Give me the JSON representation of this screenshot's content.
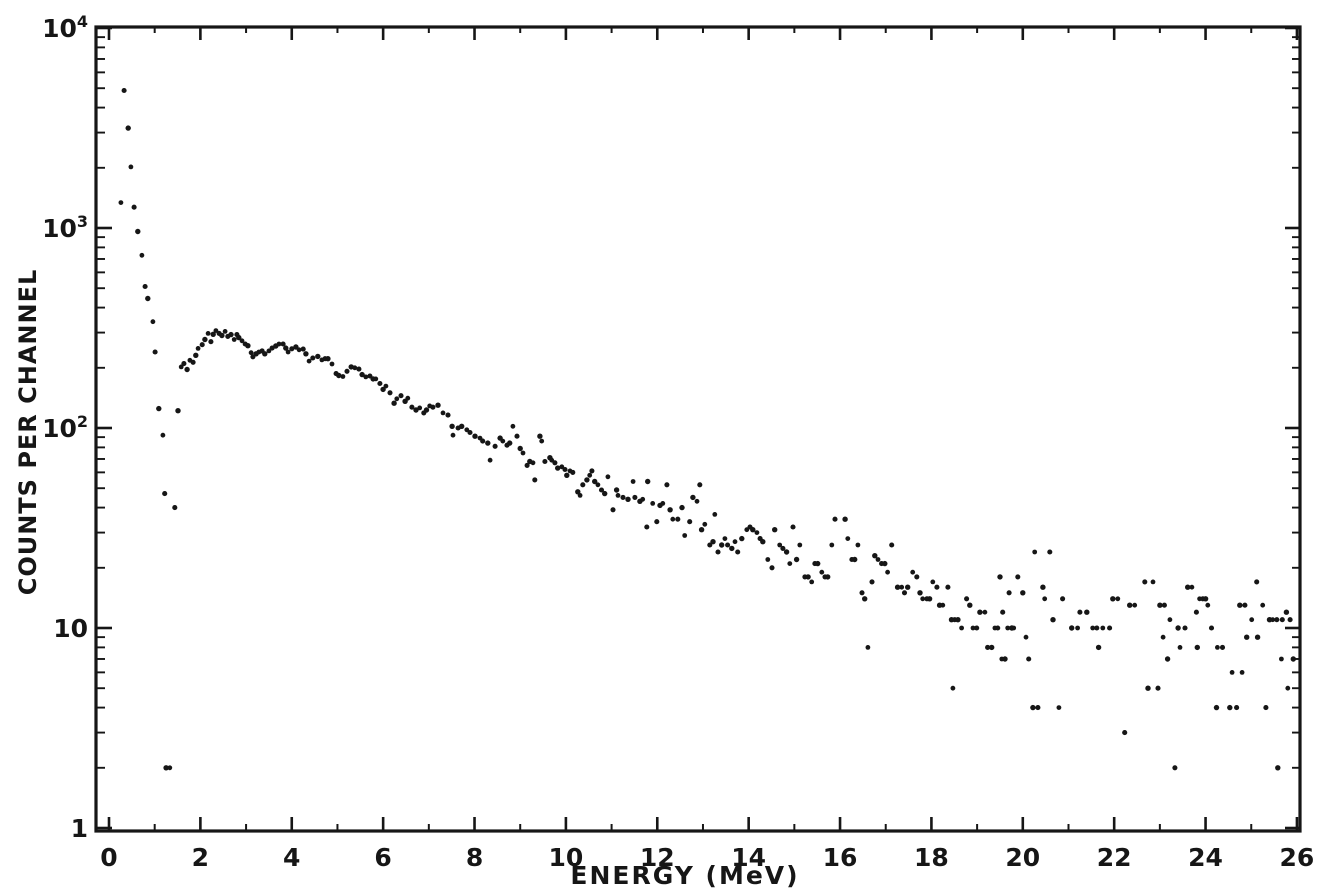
{
  "style": {
    "ink": "#161616",
    "paper": "#ffffff"
  },
  "chart_data": {
    "type": "scatter",
    "title": "",
    "xlabel": "ENERGY (MeV)",
    "ylabel": "COUNTS PER CHANNEL",
    "legend": "none",
    "grid": "off",
    "marker": "filled-dot",
    "x_axis": {
      "min": 0,
      "max": 26,
      "scale": "linear",
      "major_tick_step": 2,
      "minor_tick_step": 1,
      "tick_values": [
        0,
        2,
        4,
        6,
        8,
        10,
        12,
        14,
        16,
        18,
        20,
        22,
        24,
        26
      ],
      "tick_labels": [
        "0",
        "2",
        "4",
        "6",
        "8",
        "10",
        "12",
        "14",
        "16",
        "18",
        "20",
        "22",
        "24",
        "26"
      ]
    },
    "y_axis": {
      "min": 1,
      "max": 10000,
      "scale": "log",
      "tick_values": [
        1,
        10,
        100,
        1000,
        10000
      ],
      "tick_labels": [
        "1",
        "10",
        "10^2",
        "10^3",
        "10^4"
      ]
    },
    "points": [
      [
        0.26,
        1340
      ],
      [
        0.33,
        4870
      ],
      [
        0.42,
        3160
      ],
      [
        0.48,
        2020
      ],
      [
        0.55,
        1270
      ],
      [
        0.63,
        960
      ],
      [
        0.72,
        730
      ],
      [
        0.79,
        510
      ],
      [
        0.85,
        444
      ],
      [
        0.96,
        340
      ],
      [
        1.01,
        240
      ],
      [
        1.09,
        125
      ],
      [
        1.18,
        92
      ],
      [
        1.22,
        47
      ],
      [
        1.25,
        2
      ],
      [
        1.33,
        2
      ],
      [
        1.44,
        40
      ],
      [
        1.51,
        122
      ],
      [
        1.58,
        202
      ],
      [
        1.64,
        210
      ],
      [
        1.71,
        196
      ],
      [
        1.77,
        218
      ],
      [
        1.84,
        213
      ],
      [
        1.9,
        231
      ],
      [
        1.95,
        250
      ],
      [
        2.04,
        261
      ],
      [
        2.1,
        277
      ],
      [
        2.17,
        297
      ],
      [
        2.23,
        270
      ],
      [
        2.28,
        294
      ],
      [
        2.34,
        307
      ],
      [
        2.41,
        297
      ],
      [
        2.47,
        290
      ],
      [
        2.54,
        304
      ],
      [
        2.6,
        287
      ],
      [
        2.67,
        293
      ],
      [
        2.74,
        277
      ],
      [
        2.8,
        293
      ],
      [
        2.84,
        283
      ],
      [
        2.91,
        273
      ],
      [
        2.98,
        263
      ],
      [
        3.04,
        258
      ],
      [
        3.11,
        238
      ],
      [
        3.15,
        227
      ],
      [
        3.22,
        235
      ],
      [
        3.28,
        240
      ],
      [
        3.35,
        243
      ],
      [
        3.41,
        235
      ],
      [
        3.5,
        243
      ],
      [
        3.57,
        251
      ],
      [
        3.65,
        257
      ],
      [
        3.72,
        263
      ],
      [
        3.81,
        263
      ],
      [
        3.87,
        251
      ],
      [
        3.92,
        240
      ],
      [
        4.0,
        249
      ],
      [
        4.09,
        254
      ],
      [
        4.16,
        246
      ],
      [
        4.25,
        248
      ],
      [
        4.31,
        235
      ],
      [
        4.38,
        216
      ],
      [
        4.46,
        224
      ],
      [
        4.57,
        228
      ],
      [
        4.66,
        219
      ],
      [
        4.73,
        222
      ],
      [
        4.79,
        222
      ],
      [
        4.88,
        209
      ],
      [
        4.97,
        187
      ],
      [
        5.03,
        183
      ],
      [
        5.12,
        181
      ],
      [
        5.21,
        192
      ],
      [
        5.3,
        202
      ],
      [
        5.38,
        200
      ],
      [
        5.47,
        197
      ],
      [
        5.54,
        185
      ],
      [
        5.62,
        180
      ],
      [
        5.71,
        182
      ],
      [
        5.78,
        176
      ],
      [
        5.84,
        176
      ],
      [
        5.93,
        167
      ],
      [
        6.0,
        156
      ],
      [
        6.06,
        162
      ],
      [
        6.15,
        150
      ],
      [
        6.24,
        133
      ],
      [
        6.3,
        140
      ],
      [
        6.39,
        145
      ],
      [
        6.48,
        136
      ],
      [
        6.54,
        141
      ],
      [
        6.63,
        127
      ],
      [
        6.72,
        123
      ],
      [
        6.8,
        126
      ],
      [
        6.89,
        119
      ],
      [
        6.95,
        123
      ],
      [
        7.02,
        129
      ],
      [
        7.09,
        127
      ],
      [
        7.2,
        130
      ],
      [
        7.31,
        119
      ],
      [
        7.42,
        116
      ],
      [
        7.51,
        102
      ],
      [
        7.53,
        92
      ],
      [
        7.64,
        100
      ],
      [
        7.72,
        102
      ],
      [
        7.83,
        98
      ],
      [
        7.9,
        95
      ],
      [
        8.01,
        91
      ],
      [
        8.12,
        89
      ],
      [
        8.18,
        86
      ],
      [
        8.29,
        84
      ],
      [
        8.34,
        69
      ],
      [
        8.45,
        81
      ],
      [
        8.56,
        89
      ],
      [
        8.62,
        86
      ],
      [
        8.71,
        82
      ],
      [
        8.77,
        84
      ],
      [
        8.84,
        102
      ],
      [
        8.93,
        91
      ],
      [
        9.0,
        79
      ],
      [
        9.06,
        75
      ],
      [
        9.15,
        65
      ],
      [
        9.21,
        68
      ],
      [
        9.28,
        67
      ],
      [
        9.32,
        55
      ],
      [
        9.43,
        91
      ],
      [
        9.47,
        86
      ],
      [
        9.54,
        68
      ],
      [
        9.65,
        71
      ],
      [
        9.69,
        69
      ],
      [
        9.76,
        67
      ],
      [
        9.82,
        63
      ],
      [
        9.91,
        64
      ],
      [
        9.98,
        62
      ],
      [
        10.02,
        58
      ],
      [
        10.09,
        61
      ],
      [
        10.15,
        60
      ],
      [
        10.26,
        48
      ],
      [
        10.31,
        46
      ],
      [
        10.37,
        52
      ],
      [
        10.46,
        55
      ],
      [
        10.52,
        58
      ],
      [
        10.57,
        61
      ],
      [
        10.63,
        54
      ],
      [
        10.7,
        52
      ],
      [
        10.78,
        49
      ],
      [
        10.85,
        47
      ],
      [
        10.92,
        57
      ],
      [
        11.03,
        39
      ],
      [
        11.11,
        49
      ],
      [
        11.14,
        46
      ],
      [
        11.25,
        45
      ],
      [
        11.36,
        44
      ],
      [
        11.47,
        54
      ],
      [
        11.51,
        45
      ],
      [
        11.62,
        43
      ],
      [
        11.68,
        44
      ],
      [
        11.77,
        32
      ],
      [
        11.79,
        54
      ],
      [
        11.9,
        42
      ],
      [
        11.99,
        34
      ],
      [
        12.06,
        41
      ],
      [
        12.12,
        42
      ],
      [
        12.21,
        52
      ],
      [
        12.28,
        39
      ],
      [
        12.34,
        35
      ],
      [
        12.45,
        35
      ],
      [
        12.54,
        40
      ],
      [
        12.6,
        29
      ],
      [
        12.71,
        34
      ],
      [
        12.78,
        45
      ],
      [
        12.87,
        43
      ],
      [
        12.93,
        52
      ],
      [
        12.97,
        31
      ],
      [
        13.04,
        33
      ],
      [
        13.15,
        26
      ],
      [
        13.22,
        27
      ],
      [
        13.26,
        37
      ],
      [
        13.33,
        24
      ],
      [
        13.41,
        26
      ],
      [
        13.48,
        28
      ],
      [
        13.54,
        26
      ],
      [
        13.63,
        25
      ],
      [
        13.7,
        27
      ],
      [
        13.76,
        24
      ],
      [
        13.85,
        28
      ],
      [
        13.96,
        31
      ],
      [
        14.03,
        32
      ],
      [
        14.09,
        31
      ],
      [
        14.18,
        30
      ],
      [
        14.25,
        28
      ],
      [
        14.31,
        27
      ],
      [
        14.42,
        22
      ],
      [
        14.51,
        20
      ],
      [
        14.57,
        31
      ],
      [
        14.68,
        26
      ],
      [
        14.75,
        25
      ],
      [
        14.83,
        24
      ],
      [
        14.9,
        21
      ],
      [
        14.97,
        32
      ],
      [
        15.05,
        22
      ],
      [
        15.12,
        26
      ],
      [
        15.23,
        18
      ],
      [
        15.3,
        18
      ],
      [
        15.38,
        17
      ],
      [
        15.45,
        21
      ],
      [
        15.51,
        21
      ],
      [
        15.6,
        19
      ],
      [
        15.67,
        18
      ],
      [
        15.73,
        18
      ],
      [
        15.82,
        26
      ],
      [
        15.89,
        35
      ],
      [
        16.11,
        35
      ],
      [
        16.17,
        28
      ],
      [
        16.26,
        22
      ],
      [
        16.32,
        22
      ],
      [
        16.39,
        26
      ],
      [
        16.48,
        15
      ],
      [
        16.54,
        14
      ],
      [
        16.61,
        8
      ],
      [
        16.7,
        17
      ],
      [
        16.76,
        23
      ],
      [
        16.83,
        22
      ],
      [
        16.91,
        21
      ],
      [
        16.98,
        21
      ],
      [
        17.04,
        19
      ],
      [
        17.13,
        26
      ],
      [
        17.26,
        16
      ],
      [
        17.35,
        16
      ],
      [
        17.41,
        15
      ],
      [
        17.48,
        16
      ],
      [
        17.59,
        19
      ],
      [
        17.68,
        18
      ],
      [
        17.75,
        15
      ],
      [
        17.81,
        14
      ],
      [
        17.9,
        14
      ],
      [
        17.96,
        14
      ],
      [
        18.03,
        17
      ],
      [
        18.12,
        16
      ],
      [
        18.18,
        13
      ],
      [
        18.25,
        13
      ],
      [
        18.36,
        16
      ],
      [
        18.44,
        11
      ],
      [
        18.47,
        5
      ],
      [
        18.51,
        11
      ],
      [
        18.58,
        11
      ],
      [
        18.66,
        10
      ],
      [
        18.77,
        14
      ],
      [
        18.84,
        13
      ],
      [
        18.91,
        10
      ],
      [
        18.99,
        10
      ],
      [
        19.06,
        12
      ],
      [
        19.17,
        12
      ],
      [
        19.23,
        8
      ],
      [
        19.32,
        8
      ],
      [
        19.39,
        10
      ],
      [
        19.45,
        10
      ],
      [
        19.5,
        18
      ],
      [
        19.54,
        7
      ],
      [
        19.56,
        12
      ],
      [
        19.61,
        7
      ],
      [
        19.67,
        10
      ],
      [
        19.7,
        15
      ],
      [
        19.76,
        10
      ],
      [
        19.8,
        10
      ],
      [
        19.89,
        18
      ],
      [
        20.0,
        15
      ],
      [
        20.07,
        9
      ],
      [
        20.13,
        7
      ],
      [
        20.22,
        4
      ],
      [
        20.26,
        24
      ],
      [
        20.33,
        4
      ],
      [
        20.44,
        16
      ],
      [
        20.48,
        14
      ],
      [
        20.59,
        24
      ],
      [
        20.66,
        11
      ],
      [
        20.79,
        4
      ],
      [
        20.87,
        14
      ],
      [
        21.07,
        10
      ],
      [
        21.2,
        10
      ],
      [
        21.25,
        12
      ],
      [
        21.4,
        12
      ],
      [
        21.53,
        10
      ],
      [
        21.62,
        10
      ],
      [
        21.66,
        8
      ],
      [
        21.75,
        10
      ],
      [
        21.9,
        10
      ],
      [
        21.97,
        14
      ],
      [
        22.08,
        14
      ],
      [
        22.23,
        3
      ],
      [
        22.34,
        13
      ],
      [
        22.45,
        13
      ],
      [
        22.67,
        17
      ],
      [
        22.74,
        5
      ],
      [
        22.85,
        17
      ],
      [
        22.96,
        5
      ],
      [
        23.0,
        13
      ],
      [
        23.07,
        9
      ],
      [
        23.1,
        13
      ],
      [
        23.17,
        7
      ],
      [
        23.22,
        11
      ],
      [
        23.33,
        2
      ],
      [
        23.4,
        10
      ],
      [
        23.44,
        8
      ],
      [
        23.55,
        10
      ],
      [
        23.61,
        16
      ],
      [
        23.7,
        16
      ],
      [
        23.8,
        12
      ],
      [
        23.82,
        8
      ],
      [
        23.87,
        14
      ],
      [
        23.94,
        14
      ],
      [
        24.0,
        14
      ],
      [
        24.05,
        13
      ],
      [
        24.13,
        10
      ],
      [
        24.24,
        4
      ],
      [
        24.26,
        8
      ],
      [
        24.37,
        8
      ],
      [
        24.53,
        4
      ],
      [
        24.58,
        6
      ],
      [
        24.68,
        4
      ],
      [
        24.75,
        13
      ],
      [
        24.8,
        6
      ],
      [
        24.86,
        13
      ],
      [
        24.9,
        9
      ],
      [
        25.01,
        11
      ],
      [
        25.12,
        17
      ],
      [
        25.14,
        9
      ],
      [
        25.25,
        13
      ],
      [
        25.32,
        4
      ],
      [
        25.4,
        11
      ],
      [
        25.47,
        11
      ],
      [
        25.56,
        11
      ],
      [
        25.58,
        2
      ],
      [
        25.66,
        7
      ],
      [
        25.68,
        11
      ],
      [
        25.77,
        12
      ],
      [
        25.8,
        5
      ],
      [
        25.85,
        11
      ],
      [
        25.92,
        7
      ]
    ]
  }
}
